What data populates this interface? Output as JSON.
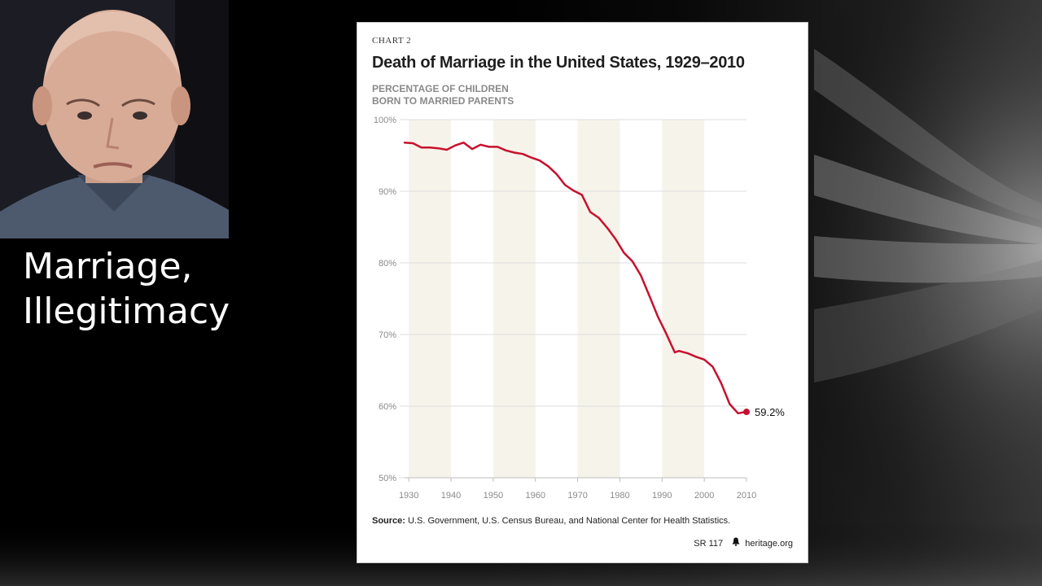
{
  "slide": {
    "heading_lines": [
      "Marriage,",
      "Illegitimacy"
    ]
  },
  "chart_card": {
    "eyebrow": "CHART 2",
    "title": "Death of Marriage in the United States, 1929–2010",
    "subtitle_lines": [
      "PERCENTAGE OF CHILDREN",
      "BORN TO MARRIED PARENTS"
    ],
    "source_label": "Source:",
    "source_text": "U.S. Government, U.S. Census Bureau, and National Center for Health Statistics.",
    "report_id": "SR 117",
    "brand": "heritage.org",
    "brand_icon": "liberty-bell-icon"
  },
  "colors": {
    "line": "#c8102e",
    "band": "#f6f3ea",
    "grid": "#dedede",
    "tick": "#8a8a8a"
  },
  "chart_data": {
    "type": "line",
    "xlim": [
      1929,
      2010
    ],
    "ylim": [
      50,
      100
    ],
    "x_ticks": [
      1930,
      1940,
      1950,
      1960,
      1970,
      1980,
      1990,
      2000,
      2010
    ],
    "y_ticks": [
      50,
      60,
      70,
      80,
      90,
      100
    ],
    "y_tick_labels": [
      "50%",
      "60%",
      "70%",
      "80%",
      "90%",
      "100%"
    ],
    "grid": "horizontal",
    "shaded_bands": [
      [
        1930,
        1940
      ],
      [
        1950,
        1960
      ],
      [
        1970,
        1980
      ],
      [
        1990,
        2000
      ]
    ],
    "end_label": "59.2%",
    "series": [
      {
        "x": [
          1929,
          1931,
          1933,
          1935,
          1937,
          1939,
          1941,
          1943,
          1945,
          1947,
          1949,
          1951,
          1953,
          1955,
          1957,
          1959,
          1961,
          1963,
          1965,
          1967,
          1969,
          1971,
          1973,
          1975,
          1977,
          1979,
          1981,
          1983,
          1985,
          1987,
          1989,
          1991,
          1993,
          1994,
          1996,
          1998,
          2000,
          2002,
          2004,
          2006,
          2008,
          2009,
          2010
        ],
        "y": [
          96.8,
          96.7,
          96.1,
          96.1,
          96.0,
          95.8,
          96.4,
          96.8,
          95.9,
          96.5,
          96.2,
          96.2,
          95.7,
          95.4,
          95.2,
          94.7,
          94.3,
          93.5,
          92.4,
          90.9,
          90.1,
          89.5,
          87.1,
          86.3,
          84.9,
          83.3,
          81.4,
          80.2,
          78.2,
          75.4,
          72.5,
          70.1,
          67.5,
          67.7,
          67.4,
          66.9,
          66.5,
          65.5,
          63.2,
          60.3,
          59.0,
          59.1,
          59.2
        ]
      }
    ]
  }
}
